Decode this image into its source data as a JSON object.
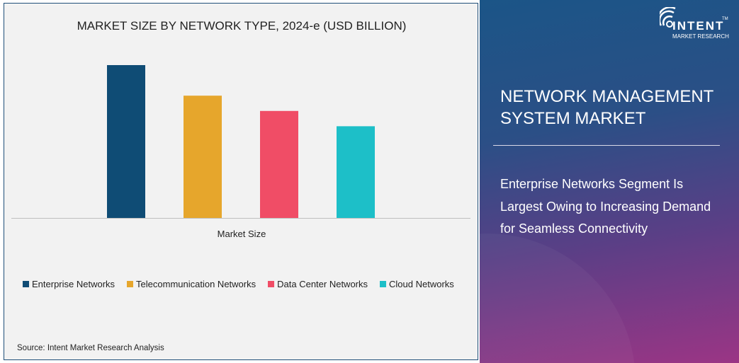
{
  "chart_data": {
    "type": "bar",
    "title": "MARKET SIZE BY NETWORK TYPE, 2024-e (USD BILLION)",
    "xlabel": "Market Size",
    "ylabel": "",
    "categories": [
      "Market Size"
    ],
    "series": [
      {
        "name": "Enterprise Networks",
        "values": [
          1.0
        ],
        "color": "#0f4c75"
      },
      {
        "name": "Telecommunication Networks",
        "values": [
          0.8
        ],
        "color": "#e6a62c"
      },
      {
        "name": "Data Center Networks",
        "values": [
          0.7
        ],
        "color": "#f04d66"
      },
      {
        "name": "Cloud Networks",
        "values": [
          0.6
        ],
        "color": "#1dbfc8"
      }
    ],
    "ylim": [
      0,
      1.0
    ],
    "value_note_units": "relative (no axis printed)",
    "grid": false,
    "legend_position": "bottom"
  },
  "source": "Source: Intent Market Research Analysis",
  "panel": {
    "heading": "NETWORK MANAGEMENT SYSTEM MARKET",
    "subheading": "Enterprise Networks Segment Is Largest Owing to Increasing Demand for Seamless Connectivity"
  },
  "logo": {
    "word": "INTENT",
    "sub": "MARKET RESEARCH",
    "tm": "TM"
  }
}
